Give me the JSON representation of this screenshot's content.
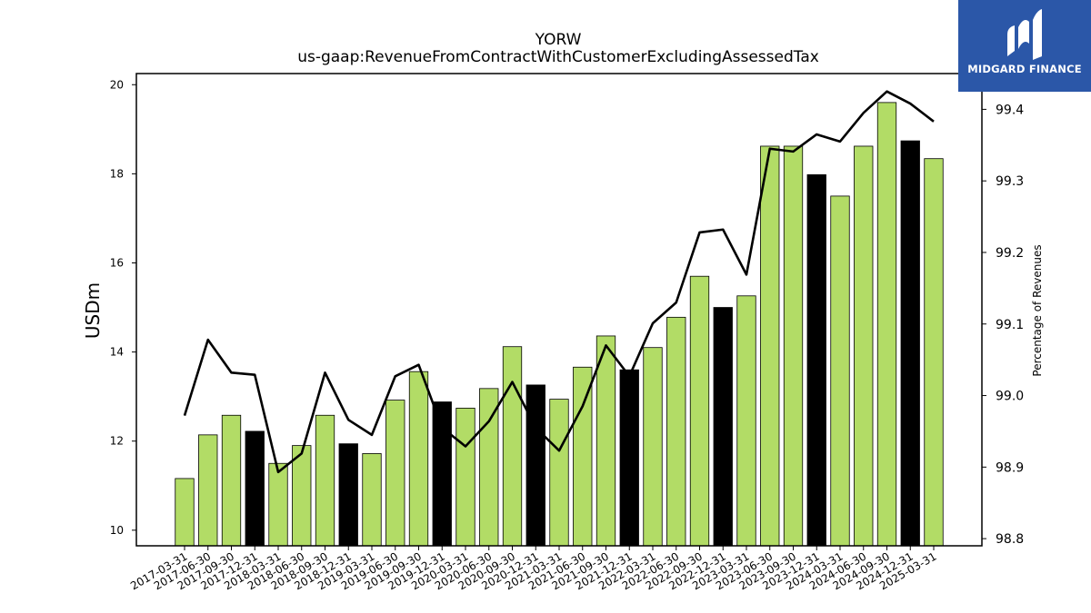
{
  "chart_data": {
    "type": "bar",
    "title": "YORW",
    "subtitle": "us-gaap:RevenueFromContractWithCustomerExcludingAssessedTax",
    "ylabel": "USDm",
    "y2label": "Percentage of Revenues",
    "ylim": [
      9.65,
      20.25
    ],
    "y2lim": [
      98.79,
      99.45
    ],
    "yticks": [
      10,
      12,
      14,
      16,
      18,
      20
    ],
    "y2ticks": [
      98.8,
      98.9,
      99.0,
      99.1,
      99.2,
      99.3,
      99.4
    ],
    "categories": [
      "2017-03-31",
      "2017-06-30",
      "2017-09-30",
      "2017-12-31",
      "2018-03-31",
      "2018-06-30",
      "2018-09-30",
      "2018-12-31",
      "2019-03-31",
      "2019-06-30",
      "2019-09-30",
      "2019-12-31",
      "2020-03-31",
      "2020-06-30",
      "2020-09-30",
      "2020-12-31",
      "2021-03-31",
      "2021-06-30",
      "2021-09-30",
      "2021-12-31",
      "2022-03-31",
      "2022-06-30",
      "2022-09-30",
      "2022-12-31",
      "2023-03-31",
      "2023-06-30",
      "2023-09-30",
      "2023-12-31",
      "2024-03-31",
      "2024-06-30",
      "2024-09-30",
      "2024-12-31",
      "2025-03-31"
    ],
    "series": [
      {
        "type": "bar",
        "values": [
          11.16,
          12.14,
          12.58,
          12.22,
          11.5,
          11.9,
          12.58,
          11.94,
          11.72,
          12.92,
          13.56,
          12.88,
          12.74,
          13.18,
          14.12,
          13.26,
          12.94,
          13.66,
          14.36,
          13.6,
          14.1,
          14.78,
          15.7,
          15.0,
          15.26,
          18.62,
          18.62,
          17.98,
          17.5,
          18.62,
          19.6,
          18.74,
          18.34
        ],
        "highlight": [
          false,
          false,
          false,
          true,
          false,
          false,
          false,
          true,
          false,
          false,
          false,
          true,
          false,
          false,
          false,
          true,
          false,
          false,
          false,
          true,
          false,
          false,
          false,
          true,
          false,
          false,
          false,
          true,
          false,
          false,
          false,
          true,
          false
        ]
      },
      {
        "type": "line",
        "axis": "right",
        "values": [
          98.972,
          99.078,
          99.032,
          99.029,
          98.893,
          98.919,
          99.032,
          98.966,
          98.945,
          99.027,
          99.043,
          98.955,
          98.929,
          98.964,
          99.019,
          98.955,
          98.923,
          98.985,
          99.07,
          99.027,
          99.101,
          99.13,
          99.228,
          99.232,
          99.169,
          99.345,
          99.341,
          99.365,
          99.355,
          99.395,
          99.425,
          99.408,
          99.383
        ]
      }
    ],
    "colors": {
      "bar": "#b2dc66",
      "highlight_bar": "#000000",
      "line": "#000000"
    },
    "grid": false
  },
  "logo": {
    "text": "MIDGARD FINANCE"
  }
}
